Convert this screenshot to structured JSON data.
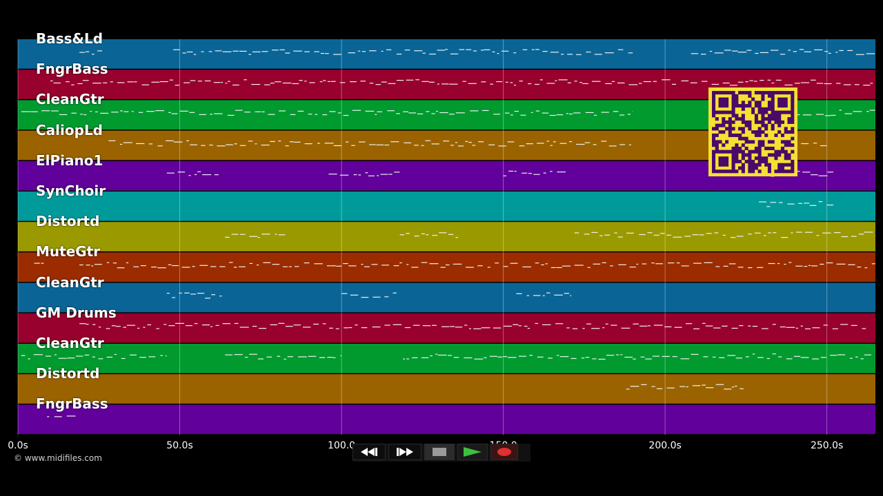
{
  "tracks": [
    {
      "name": "Bass&Ld",
      "color": "#0a6596"
    },
    {
      "name": "FngrBass",
      "color": "#98002d"
    },
    {
      "name": "CleanGtr",
      "color": "#009a2f"
    },
    {
      "name": "CaliopLd",
      "color": "#9a6300"
    },
    {
      "name": "ElPiano1",
      "color": "#61009a"
    },
    {
      "name": "SynChoir",
      "color": "#009a9a"
    },
    {
      "name": "Distortd",
      "color": "#9a9a00"
    },
    {
      "name": "MuteGtr",
      "color": "#9a2c00"
    },
    {
      "name": "CleanGtr",
      "color": "#0a6596"
    },
    {
      "name": "GM Drums",
      "color": "#98002d"
    },
    {
      "name": "CleanGtr",
      "color": "#009a2f"
    },
    {
      "name": "Distortd",
      "color": "#9a6300"
    },
    {
      "name": "FngrBass",
      "color": "#61009a"
    }
  ],
  "time_axis": {
    "max_seconds": 265,
    "ticks": [
      {
        "value": 0,
        "label": "0.0s"
      },
      {
        "value": 50,
        "label": "50.0s"
      },
      {
        "value": 100,
        "label": "100.0"
      },
      {
        "value": 150,
        "label": "150.0"
      },
      {
        "value": 200,
        "label": "200.0s"
      },
      {
        "value": 250,
        "label": "250.0s"
      }
    ]
  },
  "copyright": "© www.midifiles.com",
  "transport": {
    "rewind_icon": "rewind-icon",
    "fast_forward_icon": "fast-forward-icon",
    "stop_icon": "stop-icon",
    "play_icon": "play-icon",
    "record_icon": "record-icon",
    "play_color": "#3fbf3f",
    "record_color": "#e03030"
  },
  "qr_code": {
    "color_fg": "#4a0a6a",
    "color_bg": "#f5e132"
  }
}
